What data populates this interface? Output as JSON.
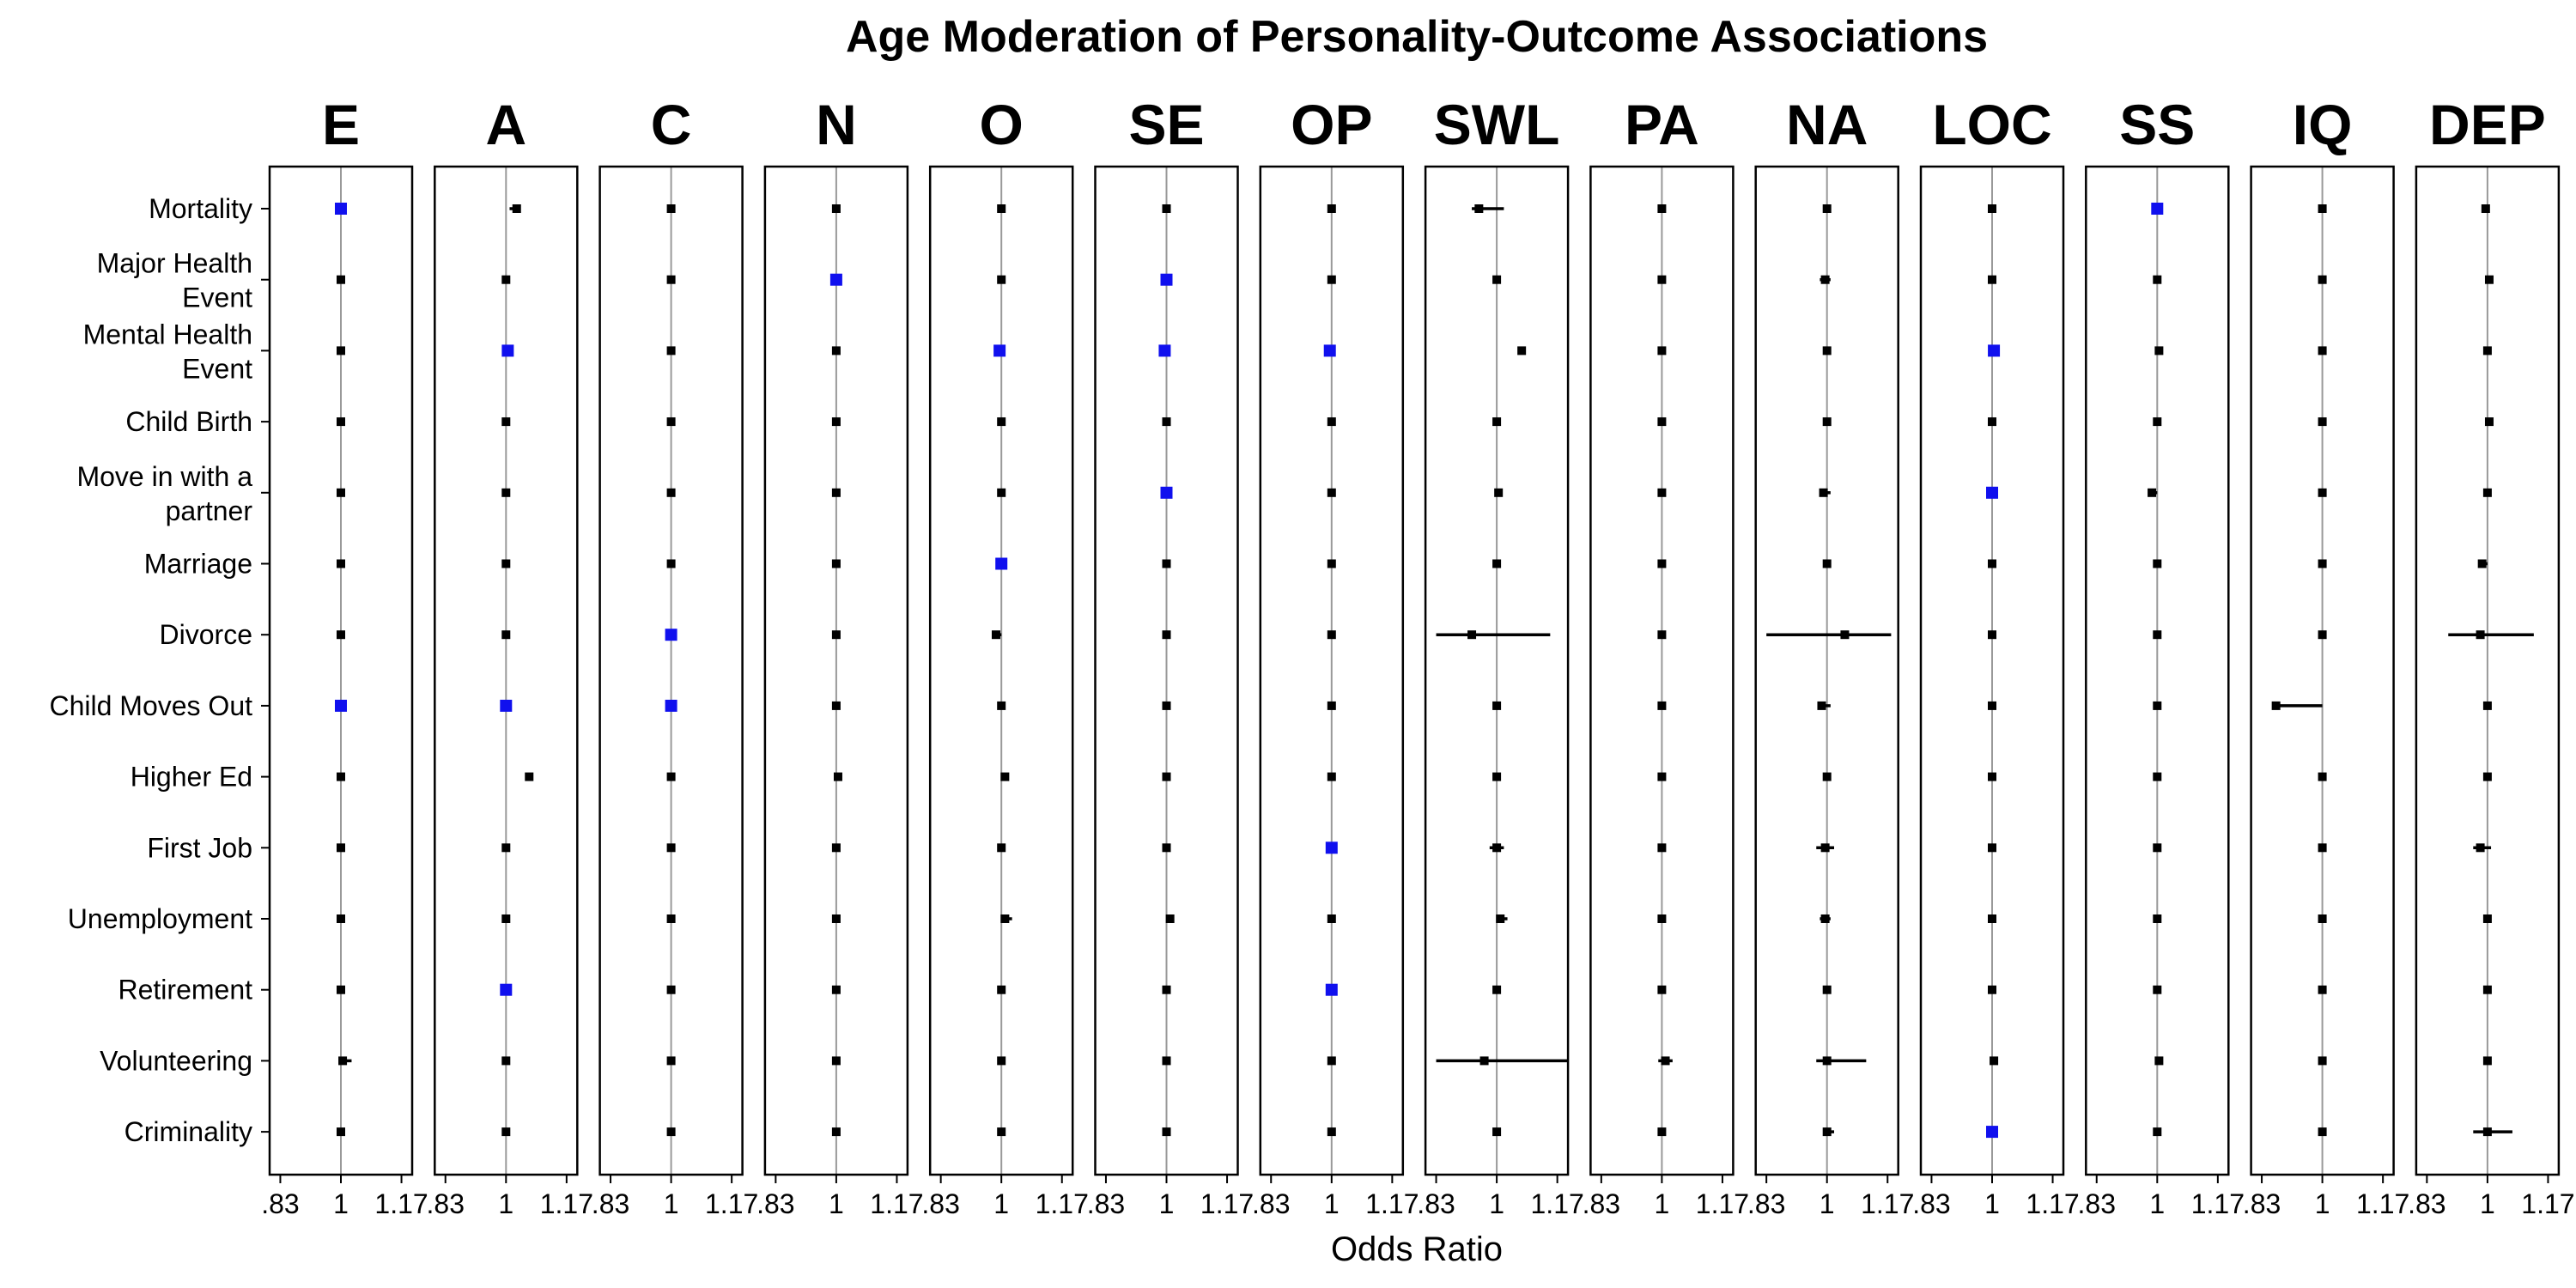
{
  "chart_data": {
    "type": "forest-plot",
    "title": "Age Moderation of Personality-Outcome Associations",
    "xlabel": "Odds Ratio",
    "ylabel": "",
    "xlim": [
      0.8,
      1.2
    ],
    "x_ticks": [
      ".83",
      "1",
      "1.17"
    ],
    "x_tick_values": [
      0.83,
      1,
      1.17
    ],
    "reference_line": 1,
    "colors": {
      "significant": "#1010ee",
      "nonsignificant": "#000000",
      "reference": "#999999"
    },
    "facets": [
      "E",
      "A",
      "C",
      "N",
      "O",
      "SE",
      "OP",
      "SWL",
      "PA",
      "NA",
      "LOC",
      "SS",
      "IQ",
      "DEP"
    ],
    "outcomes": [
      [
        "Mortality"
      ],
      [
        "Major Health",
        "Event"
      ],
      [
        "Mental Health",
        "Event"
      ],
      [
        "Child Birth"
      ],
      [
        "Move in with a",
        "partner"
      ],
      [
        "Marriage"
      ],
      [
        "Divorce"
      ],
      [
        "Child Moves Out"
      ],
      [
        "Higher Ed"
      ],
      [
        "First Job"
      ],
      [
        "Unemployment"
      ],
      [
        "Retirement"
      ],
      [
        "Volunteering"
      ],
      [
        "Criminality"
      ]
    ],
    "estimates": [
      [
        1,
        1.03,
        1,
        1,
        1,
        1,
        1,
        0.95,
        1,
        1,
        1,
        1,
        1,
        0.995
      ],
      [
        1,
        1,
        1,
        1,
        1,
        1,
        1,
        1,
        1,
        0.995,
        1,
        1,
        1,
        1.005
      ],
      [
        1,
        1.005,
        1,
        1,
        0.995,
        0.995,
        0.995,
        1.07,
        1,
        1,
        1.005,
        1.005,
        1,
        1
      ],
      [
        1,
        1,
        1,
        1,
        1,
        1,
        1,
        1,
        1,
        1,
        1,
        1,
        1,
        1.005
      ],
      [
        1,
        1,
        1,
        1,
        1,
        1,
        1,
        1.005,
        1,
        0.99,
        1,
        0.985,
        1,
        1
      ],
      [
        1,
        1,
        1,
        1,
        1,
        1,
        1,
        1,
        1,
        1,
        1,
        1,
        1,
        0.985
      ],
      [
        1,
        1,
        1,
        1,
        0.985,
        1,
        1,
        0.93,
        1,
        1.05,
        1,
        1,
        1,
        0.98
      ],
      [
        1,
        1,
        1,
        1,
        1,
        1,
        1,
        1,
        1,
        0.985,
        1,
        1,
        0.87,
        1
      ],
      [
        1,
        1.065,
        1,
        1.005,
        1.01,
        1,
        1,
        1,
        1,
        1,
        1,
        1,
        1,
        1
      ],
      [
        1,
        1,
        1,
        1,
        1,
        1,
        1,
        1,
        1,
        0.995,
        1,
        1,
        1,
        0.98
      ],
      [
        1,
        1,
        1,
        1,
        1.01,
        1.01,
        1,
        1.01,
        1,
        0.995,
        1,
        1,
        1,
        1
      ],
      [
        1,
        1,
        1,
        1,
        1,
        1,
        1,
        1,
        1,
        1,
        1,
        1,
        1,
        1
      ],
      [
        1.005,
        1,
        1,
        1,
        1,
        1,
        1,
        0.965,
        1.01,
        1,
        1.005,
        1.005,
        1,
        1
      ],
      [
        1,
        1,
        1,
        1,
        1,
        1,
        1,
        1,
        1,
        1,
        1,
        1,
        1,
        1
      ]
    ],
    "ci_lower": [
      [
        1,
        1.01,
        1,
        1,
        1,
        1,
        1,
        0.93,
        1,
        1,
        1,
        1,
        1,
        0.99
      ],
      [
        1,
        1,
        1,
        1,
        1,
        1,
        1,
        1,
        1,
        0.98,
        1,
        1,
        1,
        1
      ],
      [
        1,
        1,
        1,
        1,
        0.99,
        0.99,
        0.99,
        1.06,
        1,
        0.99,
        1,
        1,
        1,
        1
      ],
      [
        1,
        1,
        1,
        1,
        1,
        1,
        1,
        1,
        1,
        1,
        1,
        1,
        1,
        1
      ],
      [
        1,
        1,
        1,
        1,
        1,
        1,
        1,
        1,
        1,
        0.98,
        1,
        0.98,
        1,
        1
      ],
      [
        1,
        1,
        1,
        1,
        1,
        1,
        1,
        1,
        1,
        1,
        1,
        1,
        1,
        0.98
      ],
      [
        1,
        1,
        1,
        1,
        0.98,
        1,
        1,
        0.83,
        1,
        0.83,
        1,
        1,
        1,
        0.89
      ],
      [
        1,
        1,
        1,
        1,
        1,
        1,
        1,
        0.99,
        1,
        0.975,
        1,
        1,
        0.86,
        1
      ],
      [
        1,
        1.06,
        1,
        1,
        1,
        1,
        1,
        1,
        1,
        1,
        1,
        1,
        1,
        1
      ],
      [
        1,
        1,
        1,
        1,
        1,
        1,
        1,
        0.98,
        1,
        0.97,
        1,
        1,
        1,
        0.96
      ],
      [
        1,
        1,
        1,
        1,
        1,
        1,
        1,
        1,
        1,
        0.98,
        1,
        1,
        1,
        0.99
      ],
      [
        1,
        1,
        1,
        1,
        1,
        1,
        1,
        1,
        1,
        1,
        1,
        1,
        1,
        1
      ],
      [
        1,
        1,
        1,
        1,
        1,
        1,
        1,
        0.83,
        0.99,
        0.97,
        1,
        1,
        1,
        1
      ],
      [
        1,
        1,
        1,
        1,
        1,
        1,
        1,
        0.99,
        1,
        0.99,
        1,
        1,
        1,
        0.96
      ]
    ],
    "ci_upper": [
      [
        1,
        1.04,
        1,
        1,
        1,
        1,
        1,
        1.02,
        1,
        1,
        1,
        1,
        1,
        1.005
      ],
      [
        1,
        1,
        1,
        1,
        1,
        1,
        1,
        1,
        1,
        1.01,
        1,
        1,
        1,
        1.01
      ],
      [
        1,
        1.01,
        1,
        1,
        1,
        1,
        1,
        1.08,
        1,
        1.01,
        1.01,
        1.01,
        1,
        1
      ],
      [
        1,
        1,
        1,
        1,
        1,
        1,
        1,
        1,
        1,
        1,
        1,
        1,
        1,
        1.01
      ],
      [
        1,
        1,
        1,
        1,
        1,
        1,
        1,
        1.01,
        1,
        1.01,
        1,
        1,
        1,
        1
      ],
      [
        1,
        1,
        1,
        1,
        1,
        1,
        1,
        1,
        1,
        1,
        1,
        1,
        1,
        1
      ],
      [
        1,
        1,
        1,
        1,
        1,
        1,
        1,
        1.15,
        1,
        1.18,
        1,
        1,
        1,
        1.13
      ],
      [
        1,
        1,
        1,
        1,
        1,
        1,
        1,
        1.01,
        1,
        1.01,
        1,
        1,
        1,
        1
      ],
      [
        1,
        1.07,
        1,
        1.01,
        1.02,
        1,
        1,
        1,
        1,
        1,
        1,
        1,
        1,
        1
      ],
      [
        1,
        1,
        1,
        1,
        1,
        1,
        1,
        1.02,
        1,
        1.02,
        1,
        1,
        1,
        1.01
      ],
      [
        1,
        1,
        1,
        1,
        1.03,
        1.02,
        1,
        1.03,
        1,
        1.01,
        1,
        1,
        1,
        1
      ],
      [
        1,
        1,
        1,
        1,
        1,
        1,
        1,
        1,
        1,
        1,
        1,
        1,
        1,
        1
      ],
      [
        1.03,
        1,
        1,
        1,
        1,
        1,
        1,
        1.2,
        1.03,
        1.11,
        1.01,
        1.01,
        1,
        1
      ],
      [
        1.005,
        1,
        1,
        1,
        1,
        1,
        1,
        1.01,
        1,
        1.02,
        1,
        1,
        1,
        1.07
      ]
    ],
    "significant": [
      [
        1,
        0,
        0,
        0,
        0,
        0,
        0,
        0,
        0,
        0,
        0,
        1,
        0,
        0
      ],
      [
        0,
        0,
        0,
        1,
        0,
        1,
        0,
        0,
        0,
        0,
        0,
        0,
        0,
        0
      ],
      [
        0,
        1,
        0,
        0,
        1,
        1,
        1,
        0,
        0,
        0,
        1,
        0,
        0,
        0
      ],
      [
        0,
        0,
        0,
        0,
        0,
        0,
        0,
        0,
        0,
        0,
        0,
        0,
        0,
        0
      ],
      [
        0,
        0,
        0,
        0,
        0,
        1,
        0,
        0,
        0,
        0,
        1,
        0,
        0,
        0
      ],
      [
        0,
        0,
        0,
        0,
        1,
        0,
        0,
        0,
        0,
        0,
        0,
        0,
        0,
        0
      ],
      [
        0,
        0,
        1,
        0,
        0,
        0,
        0,
        0,
        0,
        0,
        0,
        0,
        0,
        0
      ],
      [
        1,
        1,
        1,
        0,
        0,
        0,
        0,
        0,
        0,
        0,
        0,
        0,
        0,
        0
      ],
      [
        0,
        0,
        0,
        0,
        0,
        0,
        0,
        0,
        0,
        0,
        0,
        0,
        0,
        0
      ],
      [
        0,
        0,
        0,
        0,
        0,
        0,
        1,
        0,
        0,
        0,
        0,
        0,
        0,
        0
      ],
      [
        0,
        0,
        0,
        0,
        0,
        0,
        0,
        0,
        0,
        0,
        0,
        0,
        0,
        0
      ],
      [
        0,
        1,
        0,
        0,
        0,
        0,
        1,
        0,
        0,
        0,
        0,
        0,
        0,
        0
      ],
      [
        0,
        0,
        0,
        0,
        0,
        0,
        0,
        0,
        0,
        0,
        0,
        0,
        0,
        0
      ],
      [
        0,
        0,
        0,
        0,
        0,
        0,
        0,
        0,
        0,
        0,
        1,
        0,
        0,
        0
      ]
    ]
  }
}
